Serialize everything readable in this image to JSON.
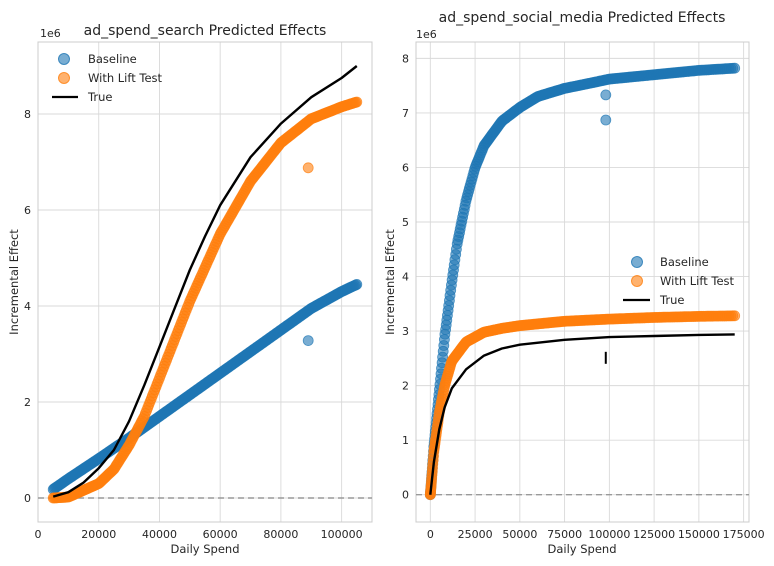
{
  "chart_data": [
    {
      "type": "scatter",
      "title": "ad_spend_search Predicted Effects",
      "xlabel": "Daily Spend",
      "ylabel": "Incremental Effect",
      "y_offset_label": "1e6",
      "xlim": [
        0,
        110000
      ],
      "ylim": [
        -0.5,
        9.5
      ],
      "xticks": [
        0,
        20000,
        40000,
        60000,
        80000,
        100000
      ],
      "xtick_labels": [
        "0",
        "20000",
        "40000",
        "60000",
        "80000",
        "100000"
      ],
      "yticks": [
        0,
        2,
        4,
        6,
        8
      ],
      "ytick_labels": [
        "0",
        "2",
        "4",
        "6",
        "8"
      ],
      "grid": true,
      "legend_position": "upper-left",
      "zero_line": true,
      "colors": {
        "baseline": "#1f77b4",
        "lift": "#ff7f0e",
        "true": "#000000"
      },
      "series": [
        {
          "name": "Baseline",
          "kind": "scatter",
          "x": [
            5000,
            10000,
            20000,
            30000,
            40000,
            50000,
            60000,
            70000,
            80000,
            90000,
            100000,
            105000
          ],
          "y": [
            0.18,
            0.4,
            0.82,
            1.25,
            1.7,
            2.15,
            2.6,
            3.05,
            3.5,
            3.95,
            4.3,
            4.45
          ],
          "outliers": [
            [
              89000,
              3.28
            ]
          ]
        },
        {
          "name": "With Lift Test",
          "kind": "scatter",
          "x": [
            5000,
            10000,
            20000,
            25000,
            30000,
            35000,
            40000,
            45000,
            50000,
            60000,
            70000,
            80000,
            90000,
            100000,
            105000
          ],
          "y": [
            0.0,
            0.02,
            0.3,
            0.6,
            1.1,
            1.7,
            2.5,
            3.3,
            4.1,
            5.5,
            6.6,
            7.4,
            7.9,
            8.15,
            8.25
          ],
          "outliers": [
            [
              89000,
              6.88
            ]
          ]
        },
        {
          "name": "True",
          "kind": "line",
          "x": [
            5000,
            10000,
            15000,
            20000,
            25000,
            30000,
            35000,
            40000,
            45000,
            50000,
            55000,
            60000,
            70000,
            80000,
            90000,
            100000,
            105000
          ],
          "y": [
            0.03,
            0.12,
            0.32,
            0.62,
            1.0,
            1.6,
            2.35,
            3.15,
            3.95,
            4.75,
            5.45,
            6.1,
            7.1,
            7.8,
            8.35,
            8.75,
            9.0
          ]
        }
      ]
    },
    {
      "type": "scatter",
      "title": "ad_spend_social_media Predicted Effects",
      "xlabel": "Daily Spend",
      "ylabel": "Incremental Effect",
      "y_offset_label": "1e6",
      "xlim": [
        -8000,
        178000
      ],
      "ylim": [
        -0.5,
        8.3
      ],
      "xticks": [
        0,
        25000,
        50000,
        75000,
        100000,
        125000,
        150000,
        175000
      ],
      "xtick_labels": [
        "0",
        "25000",
        "50000",
        "75000",
        "100000",
        "125000",
        "150000",
        "175000"
      ],
      "yticks": [
        0,
        1,
        2,
        3,
        4,
        5,
        6,
        7,
        8
      ],
      "ytick_labels": [
        "0",
        "1",
        "2",
        "3",
        "4",
        "5",
        "6",
        "7",
        "8"
      ],
      "grid": true,
      "legend_position": "center-right",
      "zero_line": true,
      "colors": {
        "baseline": "#1f77b4",
        "lift": "#ff7f0e",
        "true": "#000000"
      },
      "series": [
        {
          "name": "Baseline",
          "kind": "scatter",
          "x": [
            0,
            2000,
            5000,
            8000,
            12000,
            15000,
            20000,
            25000,
            30000,
            40000,
            50000,
            60000,
            75000,
            90000,
            100000,
            125000,
            150000,
            170000
          ],
          "y": [
            0.0,
            0.9,
            1.9,
            2.9,
            3.9,
            4.6,
            5.4,
            6.0,
            6.4,
            6.85,
            7.1,
            7.3,
            7.45,
            7.55,
            7.62,
            7.7,
            7.78,
            7.82
          ],
          "outliers": [
            [
              98000,
              7.33
            ],
            [
              98000,
              6.87
            ]
          ]
        },
        {
          "name": "With Lift Test",
          "kind": "scatter",
          "x": [
            0,
            2000,
            5000,
            8000,
            12000,
            20000,
            30000,
            40000,
            50000,
            75000,
            100000,
            125000,
            150000,
            170000
          ],
          "y": [
            0.0,
            0.8,
            1.5,
            2.0,
            2.45,
            2.8,
            2.98,
            3.05,
            3.1,
            3.18,
            3.22,
            3.25,
            3.27,
            3.28
          ],
          "outliers": []
        },
        {
          "name": "True",
          "kind": "line",
          "x": [
            0,
            2000,
            5000,
            8000,
            12000,
            20000,
            30000,
            40000,
            50000,
            75000,
            100000,
            125000,
            150000,
            170000
          ],
          "y": [
            0.0,
            0.6,
            1.2,
            1.6,
            1.95,
            2.3,
            2.55,
            2.68,
            2.75,
            2.84,
            2.89,
            2.91,
            2.93,
            2.94
          ],
          "spike": {
            "x": 98000,
            "y_from": 2.62,
            "y_to": 2.4
          }
        }
      ]
    }
  ]
}
